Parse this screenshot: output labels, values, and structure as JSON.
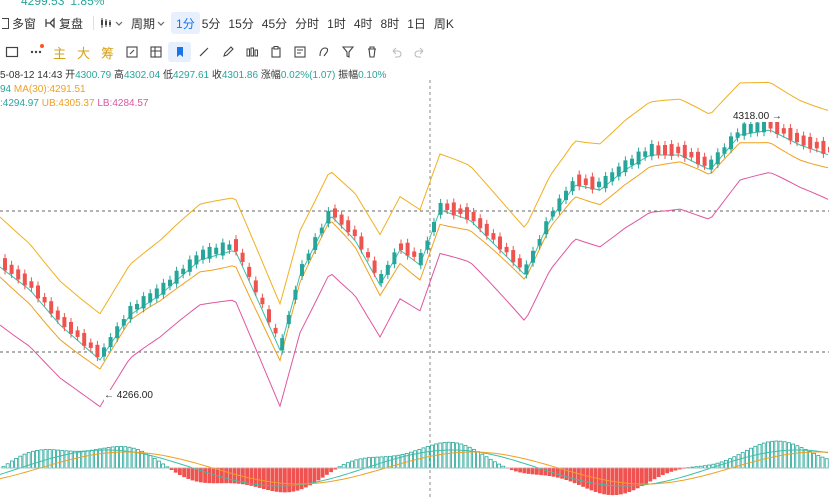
{
  "header": {
    "price": "4299.53",
    "change": "1.85%"
  },
  "toolbar": {
    "multi_label": "多窗",
    "restore_label": "复盘",
    "period_label": "周期",
    "intervals": [
      "1分",
      "5分",
      "15分",
      "45分",
      "分时",
      "1时",
      "4时",
      "8时",
      "1日",
      "周K"
    ],
    "active_interval": "1分"
  },
  "drawing_tools": {
    "main_label": "主",
    "big_label": "大",
    "chip_label": "筹"
  },
  "info_line": {
    "date": "5-08-12 14:43",
    "open_label": "开",
    "open": "4300.79",
    "high_label": "高",
    "high": "4302.04",
    "low_label": "低",
    "low": "4297.61",
    "close_label": "收",
    "close": "4301.86",
    "change_label": "涨幅",
    "change": "0.02%(1.07)",
    "amp_label": "振幅",
    "amp": "0.10%"
  },
  "ma_line": {
    "partial": "94",
    "ma30": "MA(30):4291.51"
  },
  "boll_line": {
    "mid": ":4294.97",
    "ub": "UB:4305.37",
    "lb": "LB:4284.57"
  },
  "annotations": {
    "high_mark": "4318.00",
    "low_mark": "4266.00"
  },
  "colors": {
    "up": "#26a69a",
    "down": "#ef5350",
    "ma": "#f0a020",
    "ub": "#f0b020",
    "lb": "#e055a0",
    "mid": "#3cc0a8",
    "accent": "#1a73e8"
  }
}
